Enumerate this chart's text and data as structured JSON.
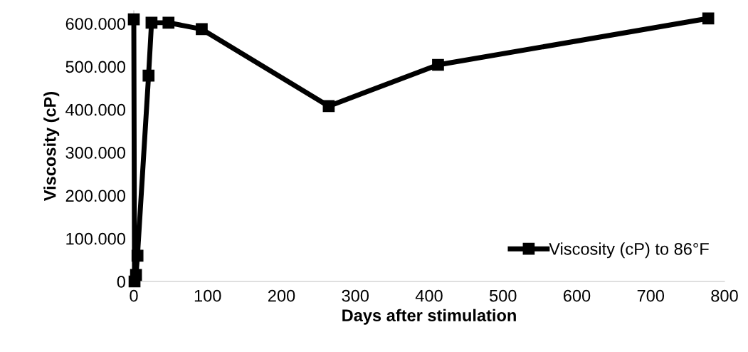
{
  "chart_data": {
    "type": "line",
    "xlabel": "Days after stimulation",
    "ylabel": "Viscosity (cP)",
    "x": [
      0,
      1,
      3,
      5,
      20,
      24,
      47,
      92,
      264,
      412,
      778
    ],
    "series": [
      {
        "name": "Viscosity (cP) to 86°F",
        "color": "#000000",
        "values": [
          610000,
          0,
          15000,
          60000,
          479000,
          602000,
          602000,
          587000,
          408000,
          504000,
          612000
        ]
      }
    ],
    "xlim": [
      0,
      800
    ],
    "xticks": [
      0,
      100,
      200,
      300,
      400,
      500,
      600,
      700,
      800
    ],
    "ylim": [
      0,
      630000
    ],
    "yticks": [
      0,
      {
        "value": 100000,
        "label": "100.000"
      },
      {
        "value": 200000,
        "label": "200.000"
      },
      {
        "value": 300000,
        "label": "300.000"
      },
      {
        "value": 400000,
        "label": "400.000"
      },
      {
        "value": 500000,
        "label": "500.000"
      },
      {
        "value": 600000,
        "label": "600.000"
      }
    ],
    "marker": "square",
    "line_style": "solid",
    "grid": false,
    "legend": "bottom right"
  }
}
